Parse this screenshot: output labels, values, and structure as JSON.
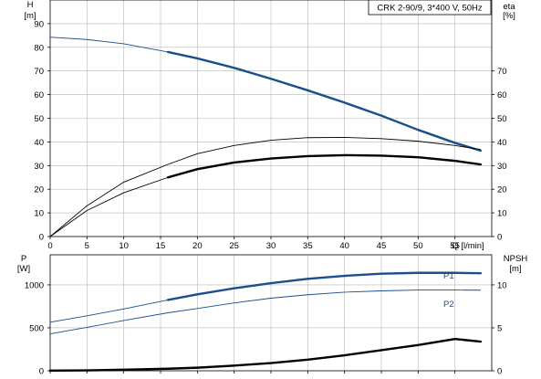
{
  "chart_data": [
    {
      "type": "line",
      "title": "CRK 2-90/9, 3*400 V, 50Hz",
      "y_axis_left": {
        "label": "H",
        "unit": "[m]",
        "ticks": [
          0,
          10,
          20,
          30,
          40,
          50,
          60,
          70,
          80,
          90
        ],
        "range": [
          0,
          100
        ]
      },
      "y_axis_right": {
        "label": "eta",
        "unit": "[%]",
        "ticks": [
          0,
          10,
          20,
          30,
          40,
          50,
          60,
          70
        ],
        "range": [
          0,
          100
        ]
      },
      "x_axis": {
        "label": "Q",
        "unit": "[l/min]",
        "ticks": [
          0,
          5,
          10,
          15,
          20,
          25,
          30,
          35,
          40,
          45,
          50,
          55
        ],
        "range": [
          0,
          60
        ]
      },
      "grid": true,
      "series": [
        {
          "color": "#1a4e8c",
          "x": [
            0,
            5,
            10,
            16,
            20,
            25,
            30,
            35,
            40,
            45,
            50,
            55,
            58.5
          ],
          "y": [
            84.3,
            83.3,
            81.5,
            78,
            75.3,
            71.3,
            66.7,
            61.8,
            56.6,
            51.1,
            45.1,
            39.6,
            36.3
          ],
          "emphasis_from": 16
        },
        {
          "color": "#000000",
          "x": [
            0,
            5,
            10,
            16,
            20,
            25,
            30,
            35,
            40,
            45,
            50,
            55,
            58.5
          ],
          "y": [
            0,
            13,
            23,
            30.5,
            35,
            38.5,
            40.7,
            41.8,
            41.9,
            41.4,
            40.3,
            38.5,
            36.8
          ],
          "emphasis_from": 999
        },
        {
          "color": "#000000",
          "x": [
            0,
            5,
            10,
            16,
            20,
            25,
            30,
            35,
            40,
            45,
            50,
            55,
            58.5
          ],
          "y": [
            0,
            11,
            18.5,
            25,
            28.5,
            31.3,
            33,
            34,
            34.4,
            34.2,
            33.5,
            32,
            30.5
          ],
          "emphasis_from": 16
        }
      ]
    },
    {
      "type": "line",
      "y_axis_left": {
        "label": "P",
        "unit": "[W]",
        "ticks": [
          0,
          500,
          1000
        ],
        "range": [
          0,
          1350
        ]
      },
      "y_axis_right": {
        "label": "NPSH",
        "unit": "[m]",
        "ticks": [
          0,
          5,
          10
        ],
        "range": [
          0,
          13.5
        ]
      },
      "x_axis": {
        "range": [
          0,
          60
        ]
      },
      "grid": true,
      "series": [
        {
          "name": "P1",
          "color": "#1a4e8c",
          "x": [
            0,
            5,
            10,
            16,
            20,
            25,
            30,
            35,
            40,
            45,
            50,
            55,
            58.5
          ],
          "y": [
            565,
            640,
            720,
            825,
            890,
            960,
            1020,
            1070,
            1105,
            1130,
            1140,
            1140,
            1135
          ],
          "emphasis_from": 16
        },
        {
          "name": "P2",
          "color": "#1a4e8c",
          "x": [
            0,
            5,
            10,
            16,
            20,
            25,
            30,
            35,
            40,
            45,
            50,
            55,
            58.5
          ],
          "y": [
            430,
            505,
            585,
            675,
            725,
            790,
            845,
            885,
            915,
            930,
            940,
            940,
            938
          ],
          "emphasis_from": 999
        },
        {
          "axis": "right",
          "color": "#000000",
          "x": [
            0,
            5,
            10,
            16,
            20,
            25,
            30,
            35,
            40,
            45,
            50,
            55,
            58.5
          ],
          "y": [
            0.02,
            0.05,
            0.12,
            0.24,
            0.36,
            0.6,
            0.9,
            1.3,
            1.8,
            2.4,
            3.0,
            3.7,
            3.4
          ],
          "emphasis_from": 0
        }
      ]
    }
  ]
}
